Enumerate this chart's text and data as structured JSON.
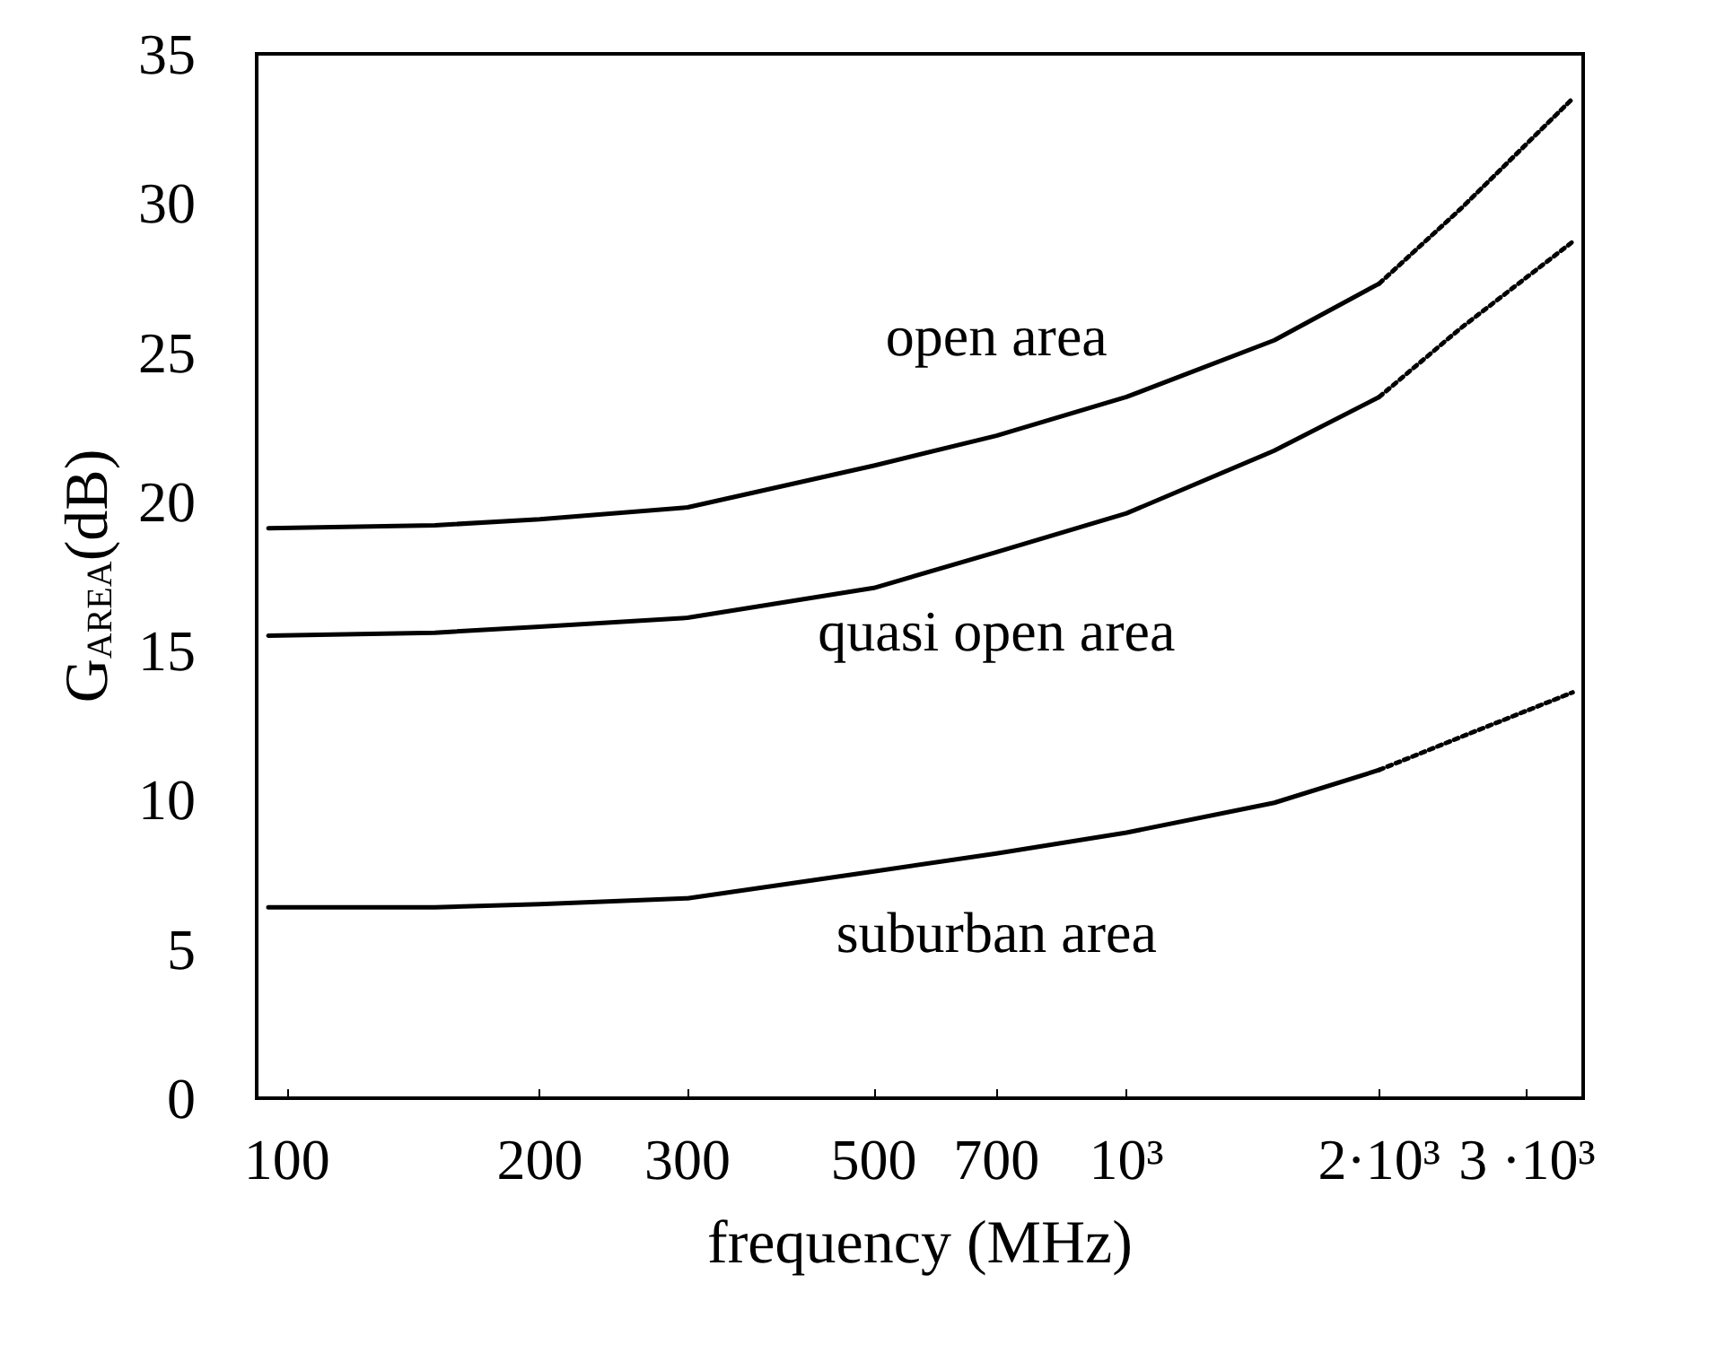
{
  "chart_data": {
    "type": "line",
    "xlabel": "frequency (MHz)",
    "ylabel": "G$_{AREA}$(dB)",
    "log": "x",
    "xlim": [
      92,
      3500
    ],
    "ylim": [
      0,
      35
    ],
    "xticks": [
      100,
      200,
      300,
      500,
      700,
      {
        "value": 1000,
        "label": "10³"
      },
      {
        "value": 2000,
        "label": "2·10³"
      },
      {
        "value": 3000,
        "label": "3 ·10³"
      }
    ],
    "yticks": [
      0,
      5,
      10,
      15,
      20,
      25,
      30,
      35
    ],
    "grid": false,
    "legend": false,
    "marker": "none",
    "series": [
      {
        "name": "open area",
        "color": "#000000",
        "line_style": "solid",
        "x": [
          95,
          150,
          200,
          300,
          500,
          700,
          1000,
          1500,
          2000
        ],
        "values": [
          19.1,
          19.2,
          19.4,
          19.8,
          21.2,
          22.2,
          23.5,
          25.4,
          27.3
        ]
      },
      {
        "color": "#000000",
        "line_style": "dotted",
        "x": [
          2000,
          2500,
          3400
        ],
        "values": [
          27.3,
          29.8,
          33.5
        ]
      },
      {
        "name": "quasi open area",
        "color": "#000000",
        "line_style": "solid",
        "x": [
          95,
          150,
          200,
          300,
          500,
          700,
          1000,
          1500,
          2000
        ],
        "values": [
          15.5,
          15.6,
          15.8,
          16.1,
          17.1,
          18.3,
          19.6,
          21.7,
          23.5
        ]
      },
      {
        "color": "#000000",
        "line_style": "dotted",
        "x": [
          2000,
          2500,
          3400
        ],
        "values": [
          23.5,
          25.8,
          28.7
        ]
      },
      {
        "name": "suburban area",
        "color": "#000000",
        "line_style": "solid",
        "x": [
          95,
          150,
          200,
          300,
          500,
          700,
          1000,
          1500,
          2000
        ],
        "values": [
          6.4,
          6.4,
          6.5,
          6.7,
          7.6,
          8.2,
          8.9,
          9.9,
          11.0
        ]
      },
      {
        "color": "#000000",
        "line_style": "dotted",
        "x": [
          2000,
          2500,
          3400
        ],
        "values": [
          11.0,
          12.1,
          13.6
        ]
      }
    ]
  }
}
